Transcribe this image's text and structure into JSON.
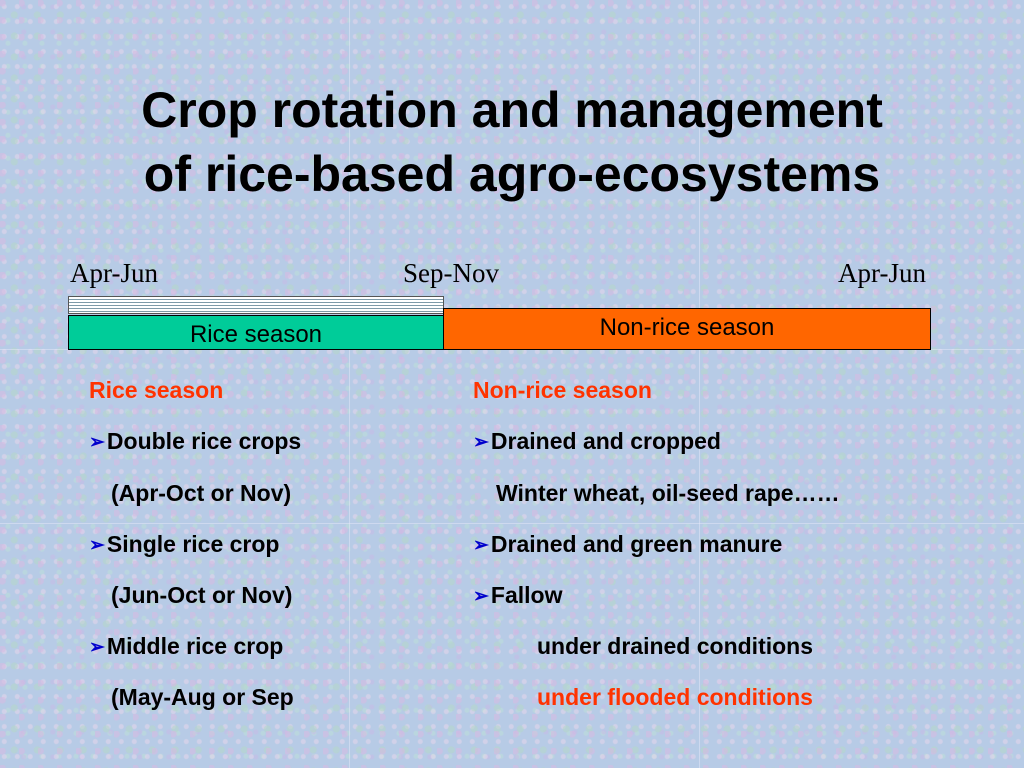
{
  "title": {
    "line1": "Crop rotation and management",
    "line2": "of rice-based agro-ecosystems"
  },
  "timeline": {
    "labels": [
      "Apr-Jun",
      "Sep-Nov",
      "Apr-Jun"
    ],
    "rice_bar": "Rice season",
    "nonrice_bar": "Non-rice season"
  },
  "colors": {
    "rice_bar": "#00cc99",
    "nonrice_bar": "#ff6600",
    "heading": "#ff3300",
    "bullet": "#0000cc"
  },
  "bullet_icon": "right-arrow-icon",
  "rice": {
    "heading": "Rice season",
    "items": [
      {
        "text": "Double rice crops",
        "sub": "(Apr-Oct or Nov)"
      },
      {
        "text": "Single rice crop",
        "sub": "(Jun-Oct or Nov)"
      },
      {
        "text": "Middle rice crop",
        "sub": "(May-Aug or Sep"
      }
    ]
  },
  "nonrice": {
    "heading": "Non-rice season",
    "items": [
      {
        "text": "Drained and cropped",
        "sub": "Winter wheat, oil-seed rape……"
      },
      {
        "text": "Drained and green manure"
      },
      {
        "text": "Fallow",
        "subs": [
          "under drained conditions",
          "under flooded conditions"
        ]
      }
    ]
  }
}
